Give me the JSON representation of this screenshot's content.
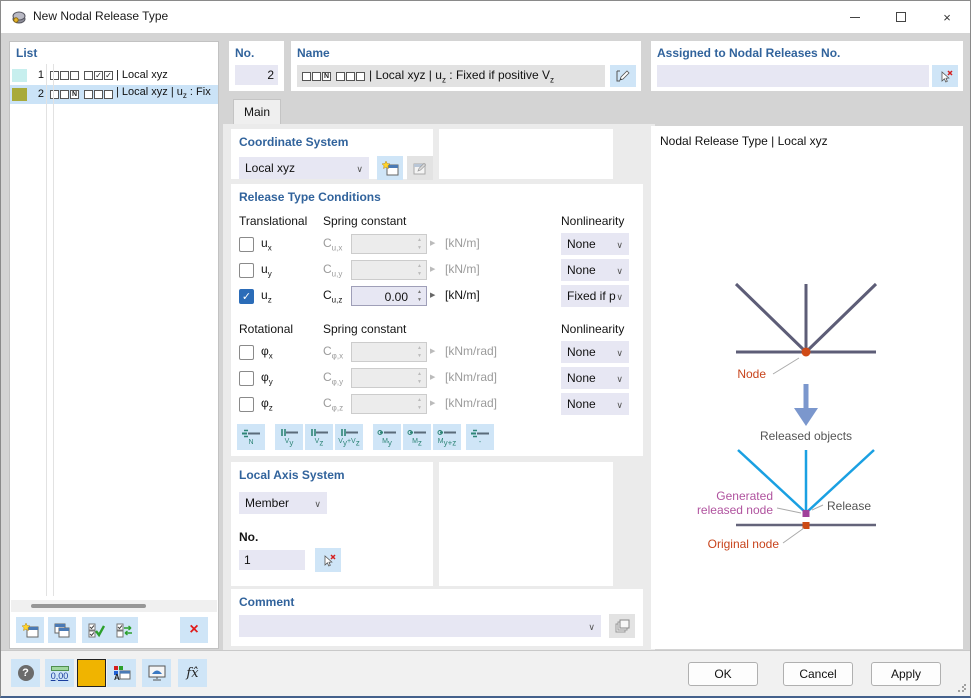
{
  "window": {
    "title": "New Nodal Release Type"
  },
  "list": {
    "header": "List",
    "items": [
      {
        "no": "1",
        "swatch": "#c7efee",
        "groups": [
          "eee",
          "ecc"
        ],
        "text": "| Local xyz",
        "selected": false
      },
      {
        "no": "2",
        "swatch": "#a8aa3a",
        "groups": [
          "een",
          "eee"
        ],
        "text": "| Local xyz | u_z : Fix",
        "selected": true
      }
    ]
  },
  "fields": {
    "no": {
      "label": "No.",
      "value": "2"
    },
    "name": {
      "label": "Name",
      "groups": [
        "een",
        "eee"
      ],
      "text": "| Local xyz | u_z : Fixed if positive V_z"
    },
    "assigned": {
      "label": "Assigned to Nodal Releases No.",
      "value": ""
    }
  },
  "tabs": [
    {
      "label": "Main",
      "active": true
    }
  ],
  "coordinate_system": {
    "header": "Coordinate System",
    "value": "Local xyz"
  },
  "release_conditions": {
    "header": "Release Type Conditions",
    "translational": {
      "label": "Translational",
      "spring": "Spring constant",
      "nonlin": "Nonlinearity",
      "rows": [
        {
          "dof": "u_x",
          "spring_label": "C_u,x",
          "checked": false,
          "enabled": false,
          "value": "",
          "unit": "[kN/m]",
          "nonlinearity": "None"
        },
        {
          "dof": "u_y",
          "spring_label": "C_u,y",
          "checked": false,
          "enabled": false,
          "value": "",
          "unit": "[kN/m]",
          "nonlinearity": "None"
        },
        {
          "dof": "u_z",
          "spring_label": "C_u,z",
          "checked": true,
          "enabled": true,
          "value": "0.00",
          "unit": "[kN/m]",
          "nonlinearity": "Fixed if p..."
        }
      ]
    },
    "rotational": {
      "label": "Rotational",
      "spring": "Spring constant",
      "nonlin": "Nonlinearity",
      "rows": [
        {
          "dof": "φ_x",
          "spring_label": "C_φ,x",
          "checked": false,
          "enabled": false,
          "value": "",
          "unit": "[kNm/rad]",
          "nonlinearity": "None"
        },
        {
          "dof": "φ_y",
          "spring_label": "C_φ,y",
          "checked": false,
          "enabled": false,
          "value": "",
          "unit": "[kNm/rad]",
          "nonlinearity": "None"
        },
        {
          "dof": "φ_z",
          "spring_label": "C_φ,z",
          "checked": false,
          "enabled": false,
          "value": "",
          "unit": "[kNm/rad]",
          "nonlinearity": "None"
        }
      ]
    },
    "quick_buttons": [
      {
        "label": "N",
        "kind": "axial"
      },
      {
        "label": "V_y",
        "kind": "shear"
      },
      {
        "label": "V_z",
        "kind": "shear"
      },
      {
        "label": "V_y+V_z",
        "kind": "shear"
      },
      {
        "label": "M_y",
        "kind": "moment"
      },
      {
        "label": "M_z",
        "kind": "moment"
      },
      {
        "label": "M_y+z",
        "kind": "moment"
      },
      {
        "label": "-",
        "kind": "axial"
      }
    ]
  },
  "local_axis": {
    "header": "Local Axis System",
    "system": "Member",
    "no_label": "No.",
    "no_value": "1"
  },
  "comment": {
    "header": "Comment",
    "value": ""
  },
  "preview": {
    "title": "Nodal Release Type | Local xyz",
    "labels": {
      "node": "Node",
      "released_objects": "Released objects",
      "generated_line1": "Generated",
      "generated_line2": "released node",
      "release": "Release",
      "original": "Original node"
    },
    "colors": {
      "member_line": "#5d5d77",
      "released_line": "#1aa0e2",
      "node": "#d04a16",
      "generated_node": "#a0409a",
      "arrow": "#7b97cd",
      "label_gray": "#555555",
      "label_orange": "#c8441c",
      "label_magenta": "#b0539f"
    }
  },
  "footer": {
    "ok": "OK",
    "cancel": "Cancel",
    "apply": "Apply",
    "units_text": "0,00"
  }
}
